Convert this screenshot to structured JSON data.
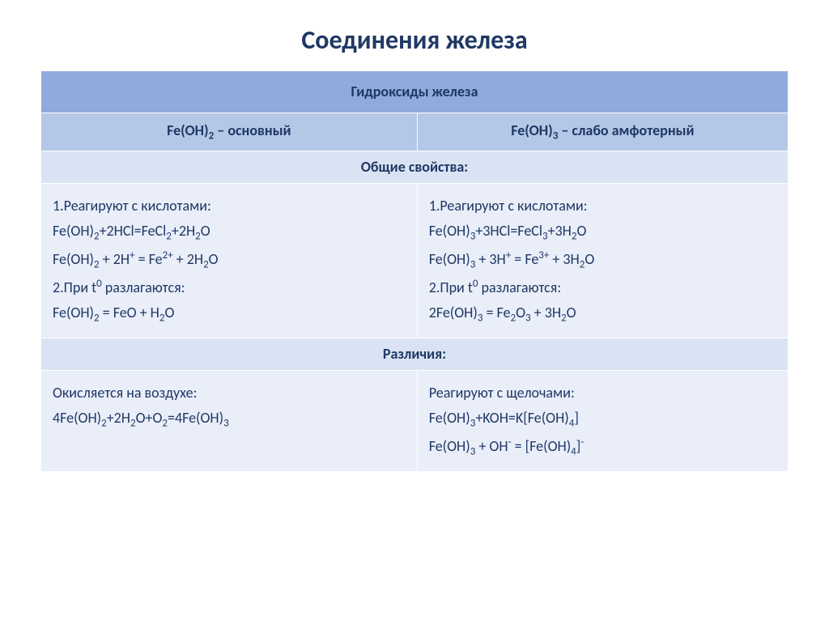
{
  "title": "Соединения железа",
  "colors": {
    "title": "#1f3864",
    "text": "#1f3864",
    "dark_bg": "#8faadc",
    "mid_bg": "#b4c7e7",
    "light1": "#dae3f3",
    "light2": "#e9eef9",
    "border": "#ffffff"
  },
  "font": {
    "title_size": 32,
    "body_size": 18
  },
  "header": "Гидроксиды железа",
  "col_left_header": "Fe(OH)<sub>2</sub> – основный",
  "col_right_header": "Fe(OH)<sub>3</sub> – слабо амфотерный",
  "common_label": "Общие свойства:",
  "diff_label": "Различия:",
  "common_left": [
    "1.Реагируют с кислотами:",
    "Fe(OH)<sub>2</sub>+2HCl=FeCl<sub>2</sub>+2H<sub>2</sub>O",
    "Fe(OH)<sub>2</sub> + 2H<sup>+</sup> = Fe<sup>2+</sup> + 2H<sub>2</sub>O",
    "2.При t<sup>0</sup> разлагаются:",
    "Fe(OH)<sub>2</sub> = FeO + H<sub>2</sub>O"
  ],
  "common_right": [
    "1.Реагируют с кислотами:",
    "Fe(OH)<sub>3</sub>+3HCl=FeCl<sub>3</sub>+3H<sub>2</sub>O",
    "Fe(OH)<sub>3</sub> + 3H<sup>+</sup> = Fe<sup>3+</sup> + 3H<sub>2</sub>O",
    "2.При t<sup>0</sup> разлагаются:",
    "2Fe(OH)<sub>3</sub> = Fe<sub>2</sub>O<sub>3</sub> + 3H<sub>2</sub>O"
  ],
  "diff_left": [
    "Окисляется на воздухе:",
    "4Fe(OH)<sub>2</sub>+2H<sub>2</sub>O+O<sub>2</sub>=4Fe(OH)<sub>3</sub>"
  ],
  "diff_right": [
    "Реагируют с щелочами:",
    "Fe(OH)<sub>3</sub>+KOH=K[Fe(OH)<sub>4</sub>]",
    "Fe(OH)<sub>3</sub> + OH<sup>-</sup> = [Fe(OH)<sub>4</sub>]<sup>-</sup>"
  ]
}
